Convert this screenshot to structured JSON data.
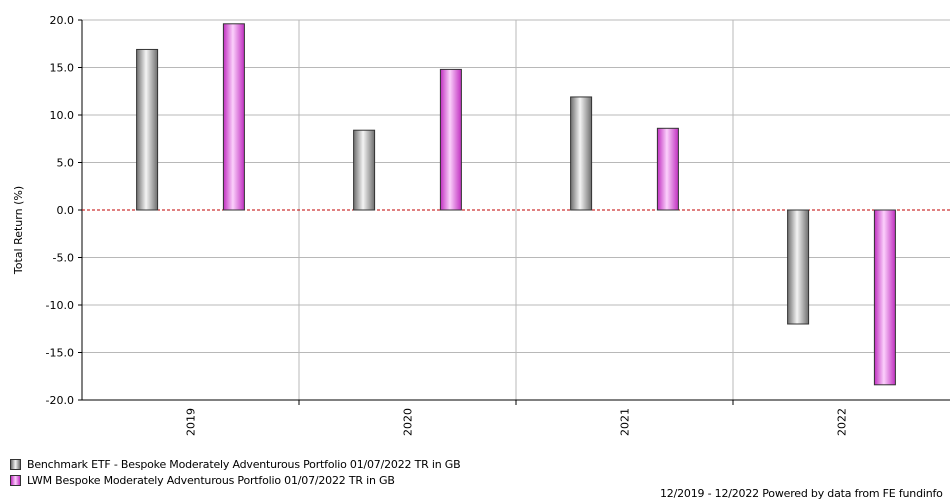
{
  "chart_data": {
    "type": "bar",
    "ylabel": "Total Return (%)",
    "xlabel": "",
    "ylim": [
      -20,
      20
    ],
    "y_ticks": [
      "20.0",
      "15.0",
      "10.0",
      "5.0",
      "0.0",
      "-5.0",
      "-10.0",
      "-15.0",
      "-20.0"
    ],
    "categories": [
      "2019",
      "2020",
      "2021",
      "2022"
    ],
    "series": [
      {
        "name": "Benchmark ETF -  Bespoke Moderately Adventurous Portfolio 01/07/2022 TR in GB",
        "values": [
          16.9,
          8.4,
          11.9,
          -12.0
        ],
        "color": "#a9a9a9"
      },
      {
        "name": "LWM Bespoke Moderately Adventurous Portfolio 01/07/2022 TR in GB",
        "values": [
          19.6,
          14.8,
          8.6,
          -18.4
        ],
        "color": "#ee66ee"
      }
    ],
    "grid": true,
    "zero_line_color": "#c00000",
    "legend_position": "bottom-left"
  },
  "footer": {
    "credit": "12/2019 - 12/2022 Powered by data from FE fundinfo"
  }
}
